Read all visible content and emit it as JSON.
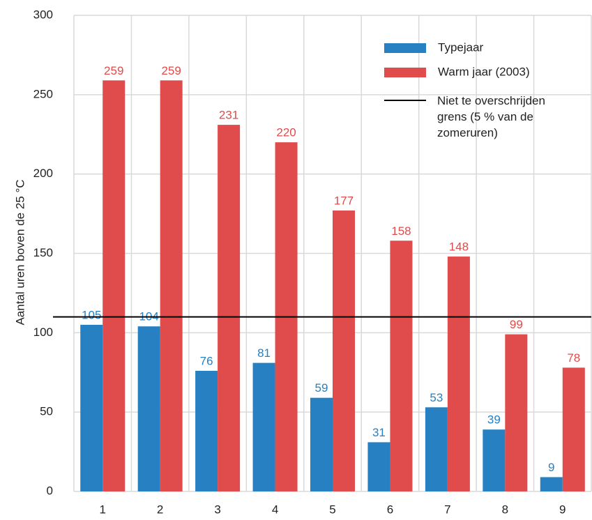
{
  "chart_data": {
    "type": "bar",
    "y_label": "Aantal uren boven de 25 °C",
    "categories": [
      "1",
      "2",
      "3",
      "4",
      "5",
      "6",
      "7",
      "8",
      "9"
    ],
    "series": [
      {
        "name": "Typejaar",
        "color": "#2680c2",
        "values": [
          105,
          104,
          76,
          81,
          59,
          31,
          53,
          39,
          9
        ]
      },
      {
        "name": "Warm jaar (2003)",
        "color": "#e04b4b",
        "values": [
          259,
          259,
          231,
          220,
          177,
          158,
          148,
          99,
          78
        ]
      }
    ],
    "reference_line": {
      "name": "Niet te overschrijden grens (5 % van de zomeruren)",
      "value": 110,
      "color": "#000000"
    },
    "ylim": [
      0,
      300
    ],
    "yticks": [
      0,
      50,
      100,
      150,
      200,
      250,
      300
    ],
    "grid": true
  }
}
